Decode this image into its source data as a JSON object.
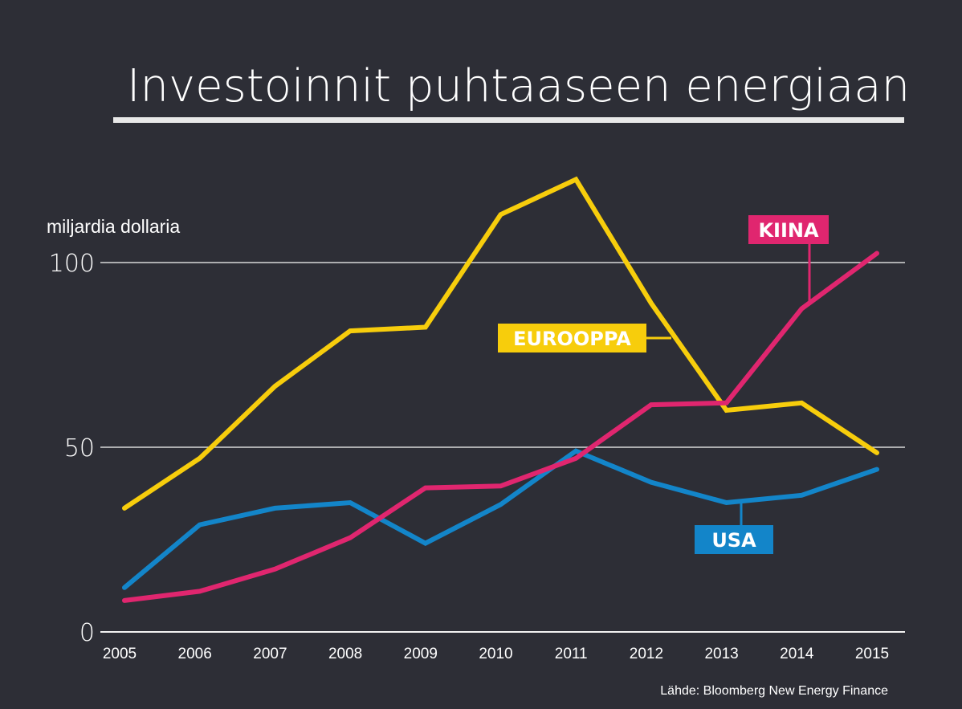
{
  "chart_data": {
    "type": "line",
    "title": "Investoinnit puhtaaseen energiaan",
    "ylabel": "miljardia dollaria",
    "xlabel": "",
    "source": "Lähde: Bloomberg New Energy Finance",
    "x": [
      "2005",
      "2006",
      "2007",
      "2008",
      "2009",
      "2010",
      "2011",
      "2012",
      "2013",
      "2014",
      "2015"
    ],
    "yticks": [
      "0",
      "50",
      "100"
    ],
    "ylim": [
      0,
      100
    ],
    "grid": true,
    "series": [
      {
        "name": "EUROOPPA",
        "color": "#f7cd0c",
        "values": [
          33.5,
          47,
          66.5,
          81.5,
          82.5,
          113,
          122.5,
          89,
          60,
          62,
          48.5
        ]
      },
      {
        "name": "KIINA",
        "color": "#e0266f",
        "values": [
          8.5,
          11,
          17,
          25.5,
          39,
          39.5,
          47,
          61.5,
          62,
          87.5,
          102.5
        ]
      },
      {
        "name": "USA",
        "color": "#1385c9",
        "values": [
          12,
          29,
          33.5,
          35,
          24,
          34.5,
          49,
          40.5,
          35,
          37,
          44
        ]
      }
    ],
    "colors": {
      "background": "#2d2e36",
      "grid": "#ffffff",
      "text": "#ffffff"
    }
  }
}
